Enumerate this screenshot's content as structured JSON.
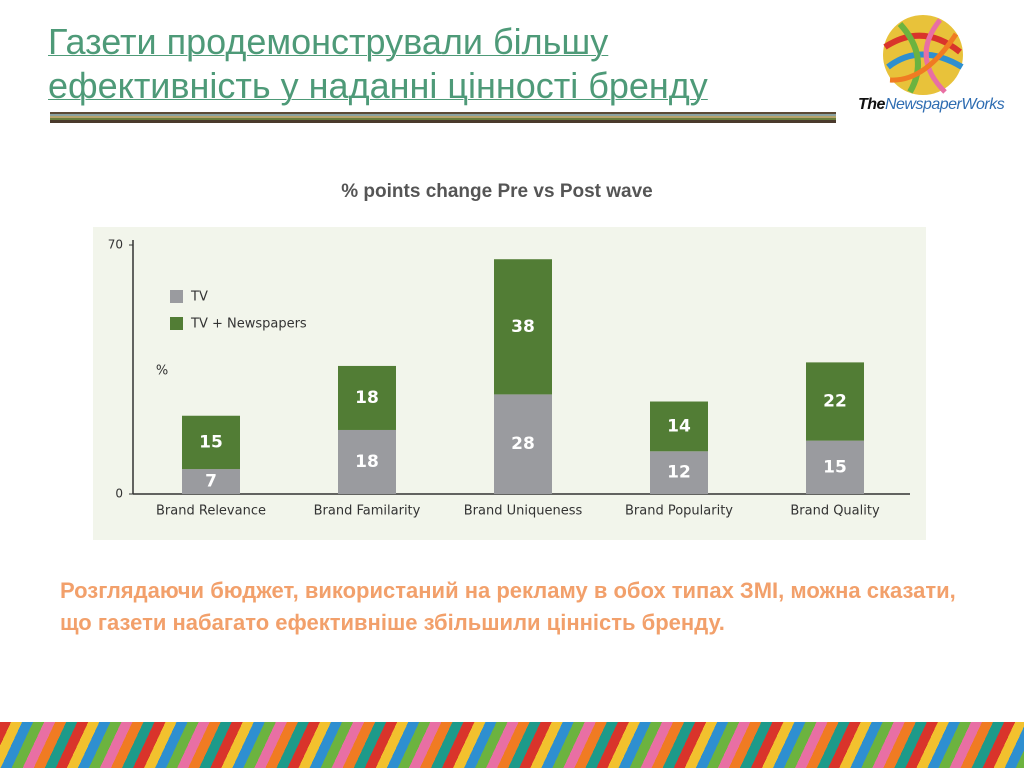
{
  "header": {
    "title_lines": [
      "Газети продемонстрували більшу",
      "ефективність у наданні цінності бренду"
    ]
  },
  "logo": {
    "prefix": "The",
    "name": "NewspaperWorks"
  },
  "chart_data": {
    "type": "stacked_bar",
    "title": "% points change Pre vs Post wave",
    "y_label": "%",
    "categories": [
      "Brand Relevance",
      "Brand Familarity",
      "Brand Uniqueness",
      "Brand Popularity",
      "Brand Quality"
    ],
    "series": [
      {
        "name": "TV",
        "color": "#9a9b9f",
        "values": [
          7,
          18,
          28,
          12,
          15
        ]
      },
      {
        "name": "TV + Newspapers",
        "color": "#527d35",
        "values": [
          15,
          18,
          38,
          14,
          22
        ]
      }
    ],
    "ylim": [
      0,
      70
    ],
    "yticks": [
      0,
      70
    ],
    "legend": "upper left"
  },
  "body": {
    "text": "Розглядаючи бюджет, використаний на рекламу в обох типах ЗМІ, можна сказати, що газети набагато ефективніше збільшили цінність бренду."
  }
}
